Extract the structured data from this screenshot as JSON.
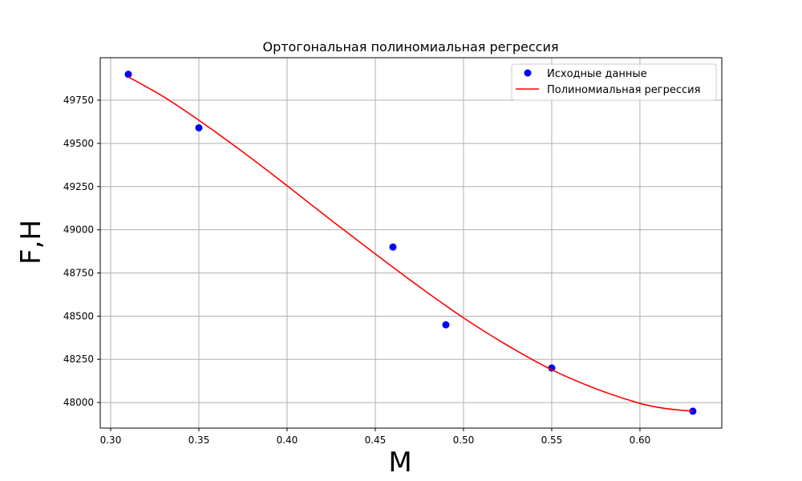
{
  "chart_data": {
    "type": "scatter+line",
    "title": "Ортогональная полиномиальная регрессия",
    "xlabel": "M",
    "ylabel": "F,H",
    "xlim": [
      0.2941,
      0.6464
    ],
    "ylim": [
      47852,
      49996
    ],
    "xticks": [
      0.3,
      0.35,
      0.4,
      0.45,
      0.5,
      0.55,
      0.6
    ],
    "xtick_labels": [
      "0.30",
      "0.35",
      "0.40",
      "0.45",
      "0.50",
      "0.55",
      "0.60"
    ],
    "yticks": [
      48000,
      48250,
      48500,
      48750,
      49000,
      49250,
      49500,
      49750
    ],
    "ytick_labels": [
      "48000",
      "48250",
      "48500",
      "48750",
      "49000",
      "49250",
      "49500",
      "49750"
    ],
    "grid": true,
    "legend_position": "top-right",
    "series": [
      {
        "name": "Исходные данные",
        "kind": "scatter",
        "color": "#0000ff",
        "x": [
          0.31,
          0.35,
          0.46,
          0.49,
          0.55,
          0.63
        ],
        "y": [
          49900,
          49590,
          48900,
          48450,
          48200,
          47950
        ]
      },
      {
        "name": "Полиномиальная регрессия",
        "kind": "line",
        "color": "#ff0000",
        "x": [
          0.31,
          0.33,
          0.35,
          0.375,
          0.4,
          0.425,
          0.45,
          0.475,
          0.5,
          0.525,
          0.55,
          0.575,
          0.6,
          0.615,
          0.63
        ],
        "y": [
          49885,
          49770,
          49634,
          49450,
          49255,
          49055,
          48860,
          48670,
          48490,
          48330,
          48190,
          48080,
          47995,
          47965,
          47950
        ]
      }
    ]
  }
}
